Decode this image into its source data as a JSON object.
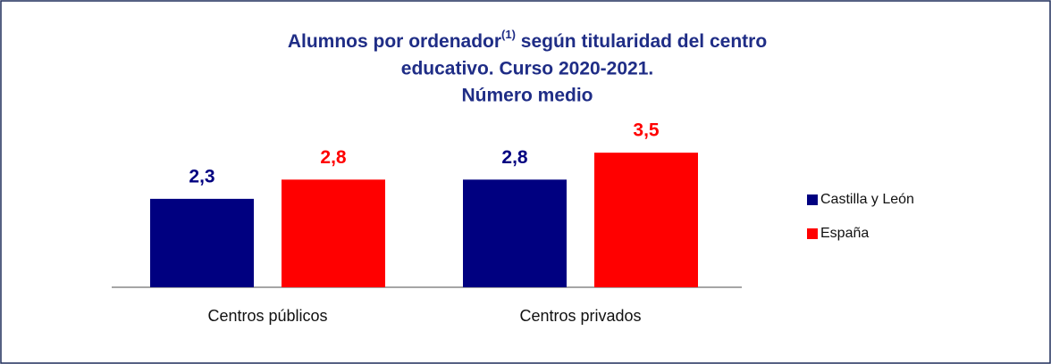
{
  "chart_data": {
    "type": "bar",
    "title": [
      "Alumnos por ordenador",
      "(1)",
      " según titularidad del centro",
      "educativo. Curso 2020-2021.",
      "Número medio"
    ],
    "categories": [
      "Centros públicos",
      "Centros privados"
    ],
    "series": [
      {
        "name": "Castilla y León",
        "color": "#000080",
        "values": [
          2.3,
          2.8
        ],
        "value_labels": [
          "2,3",
          "2,8"
        ]
      },
      {
        "name": "España",
        "color": "#ff0000",
        "values": [
          2.8,
          3.5
        ],
        "value_labels": [
          "2,8",
          "3,5"
        ]
      }
    ],
    "legend": "right"
  }
}
